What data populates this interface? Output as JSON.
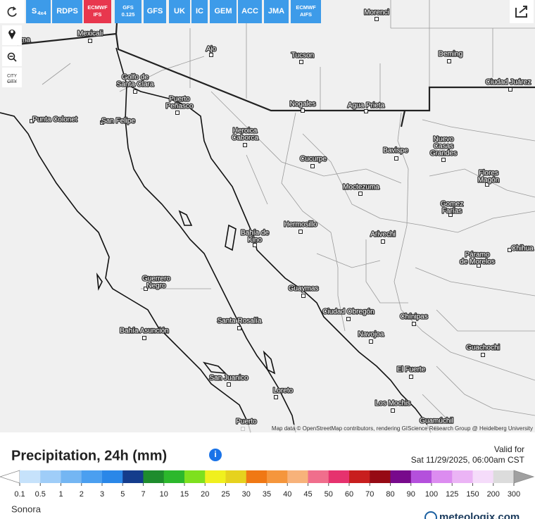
{
  "toolbar": {
    "buttons": [
      {
        "lines": [
          "S"
        ],
        "sub": "4x4"
      },
      {
        "lines": [
          "RDPS"
        ]
      },
      {
        "lines": [
          "ECMWF",
          "IFS"
        ],
        "active": true
      },
      {
        "lines": [
          "GFS",
          "0.125"
        ]
      },
      {
        "lines": [
          "GFS"
        ]
      },
      {
        "lines": [
          "UK"
        ]
      },
      {
        "lines": [
          "IC"
        ]
      },
      {
        "lines": [
          "GEM"
        ]
      },
      {
        "lines": [
          "ACC"
        ]
      },
      {
        "lines": [
          "JMA"
        ]
      },
      {
        "lines": [
          "ECMWF",
          "AIFS"
        ]
      }
    ]
  },
  "controls": {
    "city_icon": [
      "CITY",
      "CITY"
    ]
  },
  "map": {
    "cities": [
      {
        "lines": [
          "ma"
        ]
      },
      {
        "lines": [
          "Mexicali"
        ]
      },
      {
        "lines": [
          "Morenci"
        ]
      },
      {
        "lines": [
          "Ajo"
        ]
      },
      {
        "lines": [
          "Tucson"
        ]
      },
      {
        "lines": [
          "Deming"
        ]
      },
      {
        "lines": [
          "Ciudad Juárez"
        ]
      },
      {
        "lines": [
          "Golfo de",
          "Santa Clara"
        ]
      },
      {
        "lines": [
          "Puerto",
          "Peñasco"
        ]
      },
      {
        "lines": [
          "Nogales"
        ]
      },
      {
        "lines": [
          "Agua Prieta"
        ]
      },
      {
        "lines": [
          "Punta Colonet"
        ]
      },
      {
        "lines": [
          "San Felipe"
        ]
      },
      {
        "lines": [
          "Heroica",
          "Caborca"
        ]
      },
      {
        "lines": [
          "Bavispe"
        ]
      },
      {
        "lines": [
          "Nuevo",
          "Casas",
          "Grandes"
        ]
      },
      {
        "lines": [
          "Cucurpe"
        ]
      },
      {
        "lines": [
          "Flores",
          "Magón"
        ]
      },
      {
        "lines": [
          "Moctezuma"
        ]
      },
      {
        "lines": [
          "Gomez",
          "Farías"
        ]
      },
      {
        "lines": [
          "Hermosillo"
        ]
      },
      {
        "lines": [
          "Bahía de",
          "Kino"
        ]
      },
      {
        "lines": [
          "Arivechi"
        ]
      },
      {
        "lines": [
          "Chihua"
        ]
      },
      {
        "lines": [
          "Páramo",
          "de Morelos"
        ]
      },
      {
        "lines": [
          "Guerrero",
          "Negro"
        ]
      },
      {
        "lines": [
          "Guaymas"
        ]
      },
      {
        "lines": [
          "Ciudad Obregón"
        ]
      },
      {
        "lines": [
          "Chínipas"
        ]
      },
      {
        "lines": [
          "Santa Rosalía"
        ]
      },
      {
        "lines": [
          "Bahía Asunción"
        ]
      },
      {
        "lines": [
          "Navojoa"
        ]
      },
      {
        "lines": [
          "Guachochi"
        ]
      },
      {
        "lines": [
          "El Fuerte"
        ]
      },
      {
        "lines": [
          "San Juanico"
        ]
      },
      {
        "lines": [
          "Loreto"
        ]
      },
      {
        "lines": [
          "Los Mochis"
        ]
      },
      {
        "lines": [
          "Guamúchil"
        ]
      },
      {
        "lines": [
          "Puerto"
        ]
      }
    ],
    "attribution": "Map data © OpenStreetMap contributors, rendering GIScience Research Group @ Heidelberg University"
  },
  "legend": {
    "title": "Precipitation, 24h (mm)",
    "info": "i",
    "valid_for_label": "Valid for",
    "valid_for": "Sat 11/29/2025, 06:00am CST",
    "labels": [
      "0.1",
      "0.5",
      "1",
      "2",
      "3",
      "5",
      "7",
      "10",
      "15",
      "20",
      "25",
      "30",
      "35",
      "40",
      "45",
      "50",
      "60",
      "70",
      "80",
      "90",
      "100",
      "125",
      "150",
      "200",
      "300"
    ],
    "under_color": "#ffffff",
    "colors": [
      "#c6e2fb",
      "#9fcdf8",
      "#74b6f3",
      "#4b9ff0",
      "#2a87e8",
      "#143c8c",
      "#1e8c2d",
      "#2cb82c",
      "#7ee01e",
      "#f0f01e",
      "#e6d21e",
      "#f07814",
      "#f5963c",
      "#f7b27a",
      "#f06e8c",
      "#e6326e",
      "#c81e1e",
      "#960a14",
      "#780a8c",
      "#b450dc",
      "#dc8cf0",
      "#ebb4f5",
      "#f5dcfa",
      "#dcdcdc"
    ],
    "over_color": "#a0a0a0",
    "region": "Sonora",
    "logo": "meteologix.com"
  }
}
